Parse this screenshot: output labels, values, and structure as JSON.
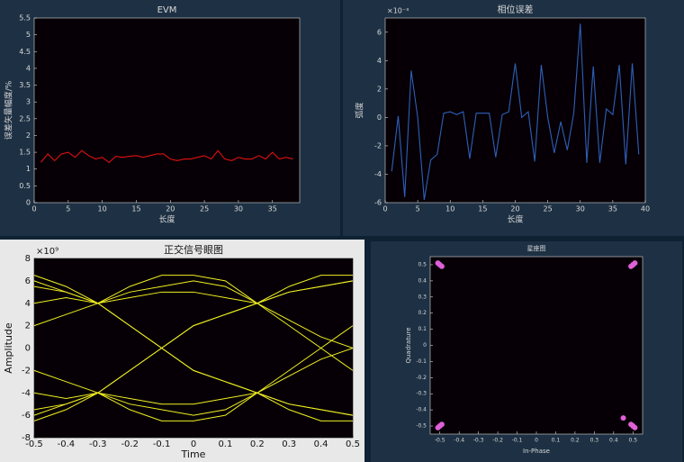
{
  "chart_data": [
    {
      "type": "line",
      "title": "EVM",
      "xlabel": "长度",
      "ylabel": "误差矢量幅度/%",
      "x": [
        1,
        2,
        3,
        4,
        5,
        6,
        7,
        8,
        9,
        10,
        11,
        12,
        13,
        14,
        15,
        16,
        17,
        18,
        19,
        20,
        21,
        22,
        23,
        24,
        25,
        26,
        27,
        28,
        29,
        30,
        31,
        32,
        33,
        34,
        35,
        36,
        37,
        38
      ],
      "series": [
        {
          "color": "#e01010",
          "values": [
            1.2,
            1.45,
            1.25,
            1.45,
            1.5,
            1.35,
            1.55,
            1.4,
            1.3,
            1.35,
            1.2,
            1.38,
            1.35,
            1.38,
            1.4,
            1.35,
            1.4,
            1.45,
            1.45,
            1.3,
            1.25,
            1.3,
            1.3,
            1.35,
            1.4,
            1.3,
            1.55,
            1.3,
            1.25,
            1.35,
            1.3,
            1.3,
            1.4,
            1.3,
            1.5,
            1.3,
            1.35,
            1.3
          ]
        }
      ],
      "xlim": [
        0,
        39
      ],
      "xticks": [
        0,
        5,
        10,
        15,
        20,
        25,
        30,
        35
      ],
      "ylim": [
        0,
        5.5
      ],
      "yticks": [
        0,
        0.5,
        1,
        1.5,
        2,
        2.5,
        3,
        3.5,
        4,
        4.5,
        5,
        5.5
      ]
    },
    {
      "type": "line",
      "title": "相位误差",
      "xlabel": "长度",
      "ylabel": "弧度",
      "y_exponent": "×10⁻³",
      "x": [
        1,
        2,
        3,
        4,
        5,
        6,
        7,
        8,
        9,
        10,
        11,
        12,
        13,
        14,
        15,
        16,
        17,
        18,
        19,
        20,
        21,
        22,
        23,
        24,
        25,
        26,
        27,
        28,
        29,
        30,
        31,
        32,
        33,
        34,
        35,
        36,
        37,
        38,
        39
      ],
      "series": [
        {
          "color": "#2f5fb8",
          "values": [
            -3.8,
            0.1,
            -5.6,
            3.3,
            0,
            -5.8,
            -3,
            -2.6,
            0.3,
            0.4,
            0.2,
            0.4,
            -2.9,
            0.3,
            0.3,
            0.3,
            -2.8,
            0.2,
            0.4,
            3.8,
            0,
            0.4,
            -3.1,
            3.7,
            0,
            -2.5,
            -0.3,
            -2.3,
            0.3,
            6.6,
            -3.2,
            3.6,
            -3.2,
            0.6,
            0.2,
            3.7,
            -3.3,
            3.8,
            -2.6
          ]
        }
      ],
      "xlim": [
        0,
        40
      ],
      "xticks": [
        0,
        5,
        10,
        15,
        20,
        25,
        30,
        35,
        40
      ],
      "ylim": [
        -6,
        7
      ],
      "yticks": [
        -6,
        -4,
        -2,
        0,
        2,
        4,
        6
      ]
    },
    {
      "type": "line",
      "title": "正交信号眼图",
      "xlabel": "Time",
      "ylabel": "Amplitude",
      "y_exponent": "×10⁹",
      "x": [
        -0.5,
        -0.4,
        -0.3,
        -0.2,
        -0.1,
        0,
        0.1,
        0.2,
        0.3,
        0.4,
        0.5
      ],
      "series": [
        {
          "color": "#f0f020",
          "values": [
            5.5,
            5,
            4,
            5,
            5.5,
            6,
            5.5,
            4,
            5,
            5.5,
            6
          ]
        },
        {
          "color": "#f0f020",
          "values": [
            -5.5,
            -5,
            -4,
            -5,
            -5.5,
            -6,
            -5.5,
            -4,
            -5,
            -5.5,
            -6
          ]
        },
        {
          "color": "#f0f020",
          "values": [
            6,
            5,
            4,
            2,
            0,
            -2,
            -3,
            -4,
            -5,
            -5.5,
            -6
          ]
        },
        {
          "color": "#f0f020",
          "values": [
            -6,
            -5,
            -4,
            -2,
            0,
            2,
            3,
            4,
            5,
            5.5,
            6
          ]
        },
        {
          "color": "#f0f020",
          "values": [
            2,
            3,
            4,
            2,
            0,
            -2,
            -3,
            -4,
            -2,
            0,
            2
          ]
        },
        {
          "color": "#f0f020",
          "values": [
            -2,
            -3,
            -4,
            -2,
            0,
            2,
            3,
            4,
            2,
            0,
            -2
          ]
        },
        {
          "color": "#f0f020",
          "values": [
            6.5,
            5.5,
            4,
            4.5,
            5,
            5,
            4.5,
            4,
            2.5,
            1,
            0
          ]
        },
        {
          "color": "#f0f020",
          "values": [
            -6.5,
            -5.5,
            -4,
            -4.5,
            -5,
            -5,
            -4.5,
            -4,
            -2.5,
            -1,
            0
          ]
        },
        {
          "color": "#f0f020",
          "values": [
            4,
            4.5,
            4,
            5.5,
            6.5,
            6.5,
            6,
            4,
            5.5,
            6.5,
            6.5
          ]
        },
        {
          "color": "#f0f020",
          "values": [
            -4,
            -4.5,
            -4,
            -5.5,
            -6.5,
            -6.5,
            -6,
            -4,
            -5.5,
            -6.5,
            -6.5
          ]
        }
      ],
      "xlim": [
        -0.5,
        0.5
      ],
      "xticks": [
        -0.5,
        -0.4,
        -0.3,
        -0.2,
        -0.1,
        0,
        0.1,
        0.2,
        0.3,
        0.4,
        0.5
      ],
      "ylim": [
        -8,
        8
      ],
      "yticks": [
        -8,
        -6,
        -4,
        -2,
        0,
        2,
        4,
        6,
        8
      ]
    },
    {
      "type": "scatter",
      "title": "星座图",
      "xlabel": "In-Phase",
      "ylabel": "Quadrature",
      "color": "#e060d8",
      "x": [
        -0.5,
        -0.49,
        -0.51,
        -0.5,
        -0.5,
        -0.49,
        -0.51,
        -0.5,
        0.5,
        0.49,
        0.51,
        0.5,
        0.5,
        0.49,
        0.51,
        0.5,
        0.45
      ],
      "y": [
        0.5,
        0.49,
        0.51,
        0.5,
        -0.5,
        -0.49,
        -0.51,
        -0.5,
        0.5,
        0.49,
        0.51,
        0.5,
        -0.5,
        -0.49,
        -0.51,
        -0.5,
        -0.45
      ],
      "xlim": [
        -0.55,
        0.55
      ],
      "xticks": [
        -0.5,
        -0.4,
        -0.3,
        -0.2,
        -0.1,
        0,
        0.1,
        0.2,
        0.3,
        0.4,
        0.5
      ],
      "ylim": [
        -0.55,
        0.55
      ],
      "yticks": [
        -0.5,
        -0.4,
        -0.3,
        -0.2,
        -0.1,
        0,
        0.1,
        0.2,
        0.3,
        0.4,
        0.5
      ]
    }
  ]
}
